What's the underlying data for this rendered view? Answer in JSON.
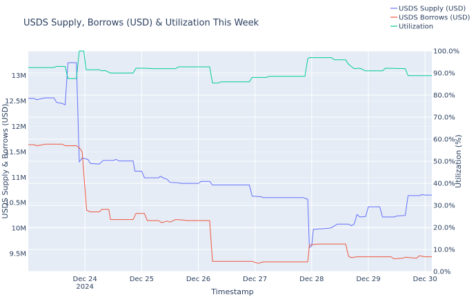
{
  "chart_data": {
    "type": "line",
    "title": "USDS Supply, Borrows (USD) & Utilization This Week",
    "xlabel": "Timestamp",
    "ylabel_left": "USDS Supply & Borrows (USD)",
    "ylabel_right": "Utilization (%)",
    "x_ticks": [
      {
        "label": "Dec 24",
        "sublabel": "2024",
        "day": 24
      },
      {
        "label": "Dec 25",
        "day": 25
      },
      {
        "label": "Dec 26",
        "day": 26
      },
      {
        "label": "Dec 27",
        "day": 27
      },
      {
        "label": "Dec 28",
        "day": 28
      },
      {
        "label": "Dec 29",
        "day": 29
      },
      {
        "label": "Dec 30",
        "day": 30
      }
    ],
    "xlim_day": [
      23.0,
      30.12
    ],
    "ylim_left": [
      9150000,
      13480000
    ],
    "ylim_right": [
      0,
      100
    ],
    "y_left_ticks": [
      {
        "value": 9500000,
        "label": "9.5M"
      },
      {
        "value": 10000000,
        "label": "10M"
      },
      {
        "value": 10500000,
        "label": "10.5M"
      },
      {
        "value": 11000000,
        "label": "11M"
      },
      {
        "value": 11500000,
        "label": "11.5M"
      },
      {
        "value": 12000000,
        "label": "12M"
      },
      {
        "value": 12500000,
        "label": "12.5M"
      },
      {
        "value": 13000000,
        "label": "13M"
      }
    ],
    "y_right_ticks": [
      {
        "value": 0,
        "label": "0.0%"
      },
      {
        "value": 10,
        "label": "10.0%"
      },
      {
        "value": 20,
        "label": "20.0%"
      },
      {
        "value": 30,
        "label": "30.0%"
      },
      {
        "value": 40,
        "label": "40.0%"
      },
      {
        "value": 50,
        "label": "50.0%"
      },
      {
        "value": 60,
        "label": "60.0%"
      },
      {
        "value": 70,
        "label": "70.0%"
      },
      {
        "value": 80,
        "label": "80.0%"
      },
      {
        "value": 90,
        "label": "90.0%"
      },
      {
        "value": 100,
        "label": "100.0%"
      }
    ],
    "grid": true,
    "legend_position": "top-right",
    "series": [
      {
        "name": "USDS Supply (USD)",
        "axis": "left",
        "color": "#636efa",
        "points": [
          [
            23.0,
            12550000
          ],
          [
            23.1,
            12550000
          ],
          [
            23.15,
            12520000
          ],
          [
            23.25,
            12550000
          ],
          [
            23.3,
            12560000
          ],
          [
            23.45,
            12560000
          ],
          [
            23.5,
            12470000
          ],
          [
            23.6,
            12450000
          ],
          [
            23.65,
            12420000
          ],
          [
            23.7,
            13250000
          ],
          [
            23.85,
            13250000
          ],
          [
            23.9,
            11300000
          ],
          [
            23.95,
            11380000
          ],
          [
            24.05,
            11350000
          ],
          [
            24.1,
            11270000
          ],
          [
            24.25,
            11260000
          ],
          [
            24.32,
            11330000
          ],
          [
            24.5,
            11330000
          ],
          [
            24.55,
            11350000
          ],
          [
            24.6,
            11320000
          ],
          [
            24.85,
            11320000
          ],
          [
            24.88,
            11120000
          ],
          [
            25.0,
            11120000
          ],
          [
            25.05,
            10990000
          ],
          [
            25.3,
            10990000
          ],
          [
            25.33,
            11020000
          ],
          [
            25.38,
            10990000
          ],
          [
            25.45,
            10960000
          ],
          [
            25.5,
            10900000
          ],
          [
            25.65,
            10890000
          ],
          [
            25.7,
            10880000
          ],
          [
            26.0,
            10880000
          ],
          [
            26.05,
            10920000
          ],
          [
            26.2,
            10920000
          ],
          [
            26.25,
            10850000
          ],
          [
            26.9,
            10850000
          ],
          [
            26.95,
            10630000
          ],
          [
            27.1,
            10620000
          ],
          [
            27.15,
            10600000
          ],
          [
            27.85,
            10600000
          ],
          [
            27.93,
            10570000
          ],
          [
            27.96,
            9620000
          ],
          [
            28.0,
            9650000
          ],
          [
            28.03,
            9980000
          ],
          [
            28.3,
            10000000
          ],
          [
            28.35,
            10010000
          ],
          [
            28.45,
            10080000
          ],
          [
            28.65,
            10080000
          ],
          [
            28.7,
            10050000
          ],
          [
            28.75,
            10080000
          ],
          [
            28.8,
            10270000
          ],
          [
            28.85,
            10220000
          ],
          [
            28.95,
            10230000
          ],
          [
            29.0,
            10420000
          ],
          [
            29.2,
            10420000
          ],
          [
            29.25,
            10220000
          ],
          [
            29.45,
            10220000
          ],
          [
            29.5,
            10240000
          ],
          [
            29.65,
            10250000
          ],
          [
            29.7,
            10640000
          ],
          [
            29.9,
            10640000
          ],
          [
            29.95,
            10660000
          ],
          [
            30.0,
            10650000
          ],
          [
            30.12,
            10650000
          ]
        ]
      },
      {
        "name": "USDS Borrows (USD)",
        "axis": "left",
        "color": "#ef553b",
        "points": [
          [
            23.0,
            11640000
          ],
          [
            23.1,
            11640000
          ],
          [
            23.15,
            11620000
          ],
          [
            23.3,
            11650000
          ],
          [
            23.6,
            11650000
          ],
          [
            23.65,
            11620000
          ],
          [
            23.85,
            11620000
          ],
          [
            23.9,
            11580000
          ],
          [
            23.95,
            11500000
          ],
          [
            24.03,
            10350000
          ],
          [
            24.1,
            10320000
          ],
          [
            24.25,
            10320000
          ],
          [
            24.3,
            10370000
          ],
          [
            24.42,
            10370000
          ],
          [
            24.45,
            10170000
          ],
          [
            24.85,
            10170000
          ],
          [
            24.9,
            10290000
          ],
          [
            25.05,
            10290000
          ],
          [
            25.1,
            10150000
          ],
          [
            25.3,
            10150000
          ],
          [
            25.35,
            10110000
          ],
          [
            25.45,
            10140000
          ],
          [
            25.5,
            10120000
          ],
          [
            25.6,
            10170000
          ],
          [
            25.75,
            10160000
          ],
          [
            25.8,
            10150000
          ],
          [
            26.2,
            10150000
          ],
          [
            26.25,
            9350000
          ],
          [
            26.95,
            9350000
          ],
          [
            27.0,
            9330000
          ],
          [
            27.05,
            9310000
          ],
          [
            27.15,
            9340000
          ],
          [
            27.93,
            9340000
          ],
          [
            27.96,
            9670000
          ],
          [
            28.1,
            9690000
          ],
          [
            28.6,
            9690000
          ],
          [
            28.65,
            9450000
          ],
          [
            28.7,
            9420000
          ],
          [
            28.8,
            9440000
          ],
          [
            29.4,
            9440000
          ],
          [
            29.45,
            9400000
          ],
          [
            29.6,
            9410000
          ],
          [
            29.65,
            9430000
          ],
          [
            29.75,
            9420000
          ],
          [
            29.85,
            9410000
          ],
          [
            29.9,
            9460000
          ],
          [
            30.0,
            9440000
          ],
          [
            30.12,
            9440000
          ]
        ]
      },
      {
        "name": "Utilization",
        "axis": "right",
        "color": "#00cc96",
        "points": [
          [
            23.0,
            92.5
          ],
          [
            23.45,
            92.5
          ],
          [
            23.5,
            93.0
          ],
          [
            23.65,
            93.0
          ],
          [
            23.7,
            87.5
          ],
          [
            23.85,
            87.5
          ],
          [
            23.9,
            100.0
          ],
          [
            23.98,
            100.0
          ],
          [
            24.02,
            91.5
          ],
          [
            24.25,
            91.5
          ],
          [
            24.3,
            91.0
          ],
          [
            24.35,
            91.2
          ],
          [
            24.45,
            90.0
          ],
          [
            24.85,
            90.0
          ],
          [
            24.9,
            92.2
          ],
          [
            25.05,
            92.2
          ],
          [
            25.2,
            92.0
          ],
          [
            25.6,
            92.0
          ],
          [
            25.65,
            92.8
          ],
          [
            26.2,
            92.8
          ],
          [
            26.25,
            85.5
          ],
          [
            26.35,
            85.5
          ],
          [
            26.4,
            86.0
          ],
          [
            26.9,
            86.0
          ],
          [
            26.95,
            88.0
          ],
          [
            27.2,
            88.0
          ],
          [
            27.25,
            88.5
          ],
          [
            27.88,
            88.5
          ],
          [
            27.93,
            96.5
          ],
          [
            27.96,
            97.0
          ],
          [
            28.35,
            97.0
          ],
          [
            28.4,
            96.0
          ],
          [
            28.6,
            96.0
          ],
          [
            28.65,
            94.0
          ],
          [
            28.75,
            92.0
          ],
          [
            28.85,
            92.2
          ],
          [
            28.95,
            91.0
          ],
          [
            29.25,
            91.0
          ],
          [
            29.3,
            92.2
          ],
          [
            29.65,
            92.0
          ],
          [
            29.7,
            88.8
          ],
          [
            30.12,
            88.8
          ]
        ]
      }
    ]
  }
}
